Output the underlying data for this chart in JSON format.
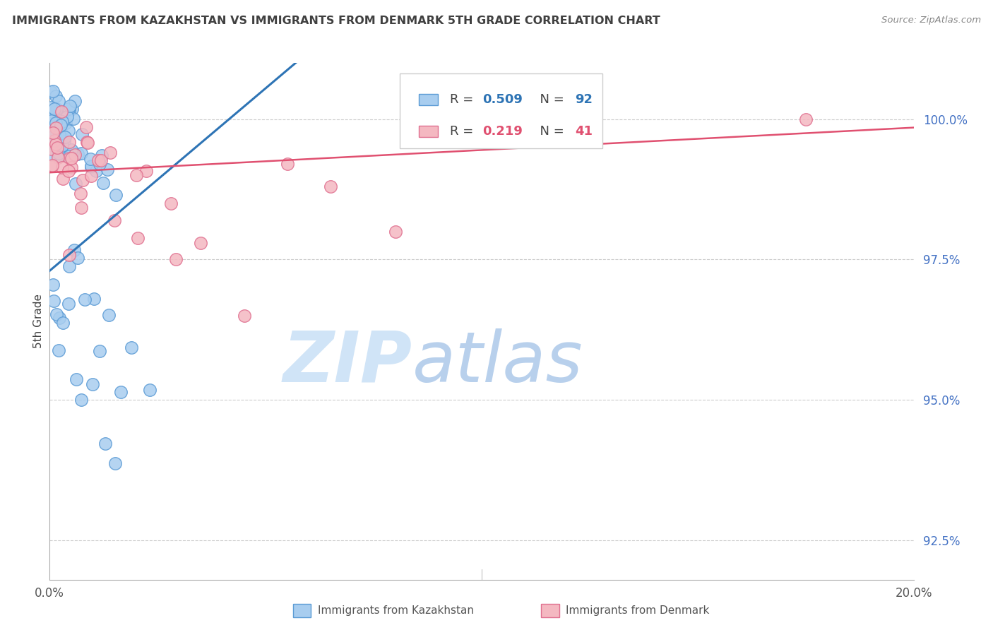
{
  "title": "IMMIGRANTS FROM KAZAKHSTAN VS IMMIGRANTS FROM DENMARK 5TH GRADE CORRELATION CHART",
  "source": "Source: ZipAtlas.com",
  "ylabel": "5th Grade",
  "xlim": [
    0.0,
    20.0
  ],
  "ylim": [
    91.8,
    101.0
  ],
  "yticks": [
    92.5,
    95.0,
    97.5,
    100.0
  ],
  "ytick_labels": [
    "92.5%",
    "95.0%",
    "97.5%",
    "100.0%"
  ],
  "xticks": [
    0.0,
    4.0,
    8.0,
    12.0,
    16.0,
    20.0
  ],
  "xtick_labels": [
    "0.0%",
    "",
    "",
    "",
    "",
    "20.0%"
  ],
  "series1_label": "Immigrants from Kazakhstan",
  "series1_R": 0.509,
  "series1_N": 92,
  "series1_color": "#A8CDEF",
  "series1_edge_color": "#5B9BD5",
  "series1_line_color": "#2E74B5",
  "series2_label": "Immigrants from Denmark",
  "series2_R": 0.219,
  "series2_N": 41,
  "series2_color": "#F4B8C1",
  "series2_edge_color": "#E07090",
  "series2_line_color": "#E05070",
  "watermark_zip": "ZIP",
  "watermark_atlas": "atlas",
  "watermark_color": "#D0E4F7",
  "legend_R_color": "#2E74B5",
  "legend_R2_color": "#E05070",
  "title_color": "#404040",
  "ytick_color": "#4472C4",
  "source_color": "#888888",
  "background_color": "#FFFFFF",
  "grid_color": "#CCCCCC",
  "spine_color": "#AAAAAA"
}
